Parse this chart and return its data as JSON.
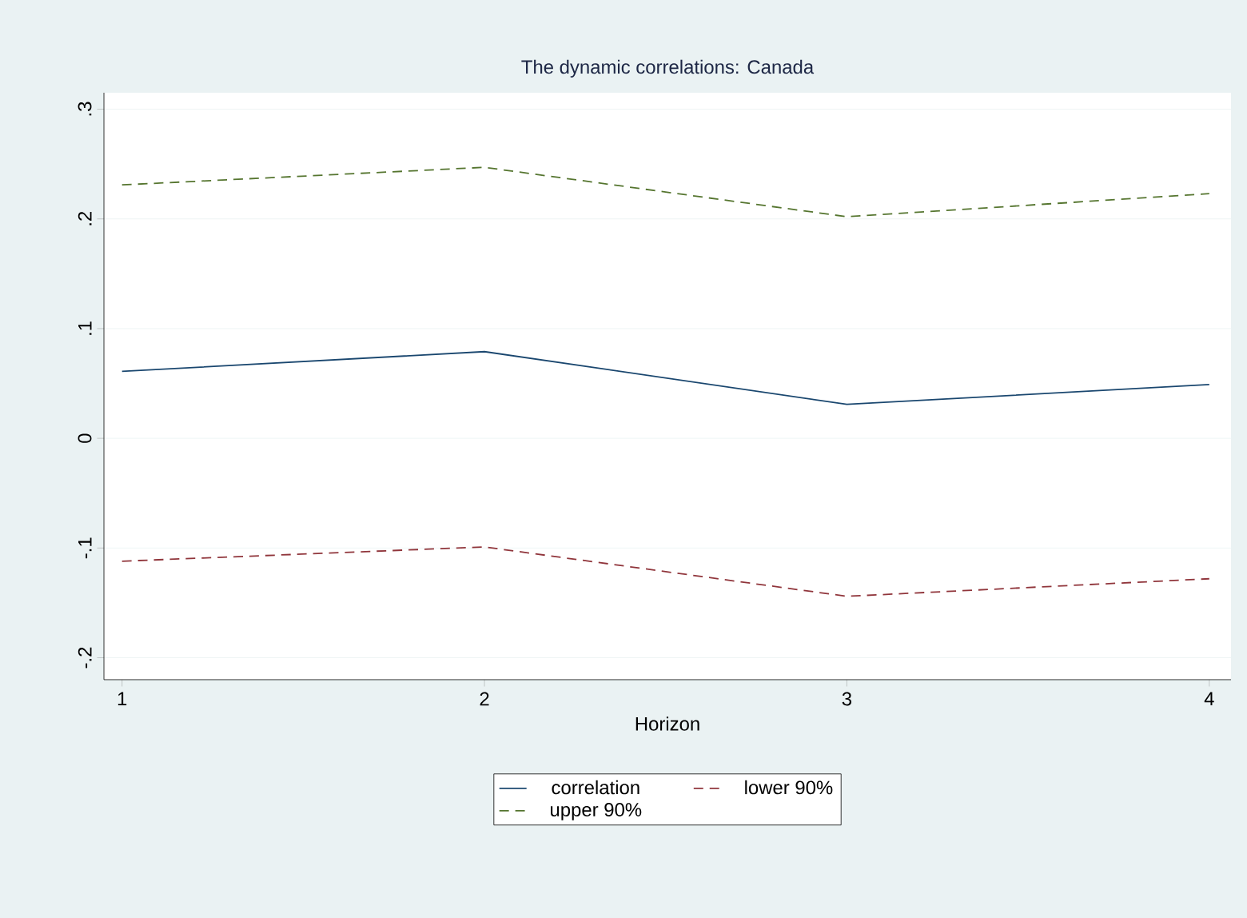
{
  "chart_data": {
    "type": "line",
    "title": "The dynamic correlations: Canada",
    "xlabel": "Horizon",
    "x": [
      1,
      2,
      3,
      4
    ],
    "series": [
      {
        "name": "correlation",
        "color": "#1a476f",
        "line_style": "solid",
        "values": [
          0.061,
          0.079,
          0.031,
          0.049
        ]
      },
      {
        "name": "lower 90%",
        "color": "#90353b",
        "line_style": "dashed",
        "values": [
          -0.112,
          -0.099,
          -0.144,
          -0.128
        ]
      },
      {
        "name": "upper 90%",
        "color": "#55752f",
        "line_style": "dashed",
        "values": [
          0.231,
          0.247,
          0.202,
          0.223
        ]
      }
    ],
    "xlim": [
      0.95,
      4.06
    ],
    "ylim": [
      -0.22,
      0.315
    ],
    "xticks": [
      1,
      2,
      3,
      4
    ],
    "yticks": [
      {
        "value": -0.2,
        "label": "-.2"
      },
      {
        "value": -0.1,
        "label": "-.1"
      },
      0,
      {
        "value": 0.1,
        "label": ".1"
      },
      {
        "value": 0.2,
        "label": ".2"
      },
      {
        "value": 0.3,
        "label": ".3"
      }
    ],
    "grid": "y",
    "legend": "bottom",
    "marker": "none"
  }
}
